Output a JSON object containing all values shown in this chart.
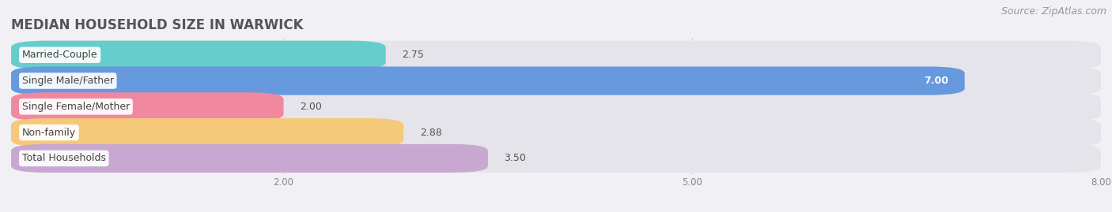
{
  "title": "MEDIAN HOUSEHOLD SIZE IN WARWICK",
  "source": "Source: ZipAtlas.com",
  "categories": [
    "Married-Couple",
    "Single Male/Father",
    "Single Female/Mother",
    "Non-family",
    "Total Households"
  ],
  "values": [
    2.75,
    7.0,
    2.0,
    2.88,
    3.5
  ],
  "colors": [
    "#66cccc",
    "#6699dd",
    "#f088a0",
    "#f5c87a",
    "#c8a8d0"
  ],
  "xmin": 0,
  "xmax": 8.0,
  "xticks": [
    2.0,
    5.0,
    8.0
  ],
  "background_color": "#f0f0f5",
  "bar_bg_color": "#e4e4ea",
  "title_fontsize": 12,
  "source_fontsize": 9,
  "label_fontsize": 9,
  "value_fontsize": 9,
  "bar_height": 0.58,
  "value_label_inside_color": "#ffffff",
  "value_label_outside_color": "#555555"
}
